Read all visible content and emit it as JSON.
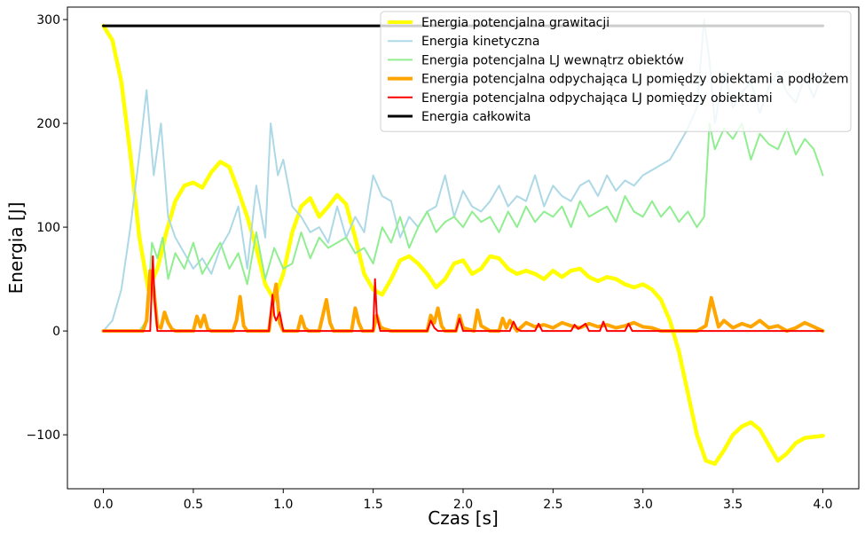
{
  "chart_data": {
    "type": "line",
    "xlabel": "Czas [s]",
    "ylabel": "Energia [J]",
    "xlim": [
      -0.2,
      4.2
    ],
    "ylim": [
      -152,
      312
    ],
    "xticks": [
      0.0,
      0.5,
      1.0,
      1.5,
      2.0,
      2.5,
      3.0,
      3.5,
      4.0
    ],
    "xtick_labels": [
      "0.0",
      "0.5",
      "1.0",
      "1.5",
      "2.0",
      "2.5",
      "3.0",
      "3.5",
      "4.0"
    ],
    "yticks": [
      -100,
      0,
      100,
      200,
      300
    ],
    "ytick_labels": [
      "−100",
      "0",
      "100",
      "200",
      "300"
    ],
    "grid": false,
    "legend_position": "top-right",
    "series": [
      {
        "name": "Energia potencjalna grawitacji",
        "color": "#ffff00",
        "width": 4.5,
        "x": [
          0.0,
          0.05,
          0.1,
          0.15,
          0.2,
          0.25,
          0.3,
          0.35,
          0.4,
          0.45,
          0.5,
          0.55,
          0.6,
          0.65,
          0.7,
          0.75,
          0.8,
          0.85,
          0.9,
          0.95,
          1.0,
          1.05,
          1.1,
          1.15,
          1.2,
          1.25,
          1.3,
          1.35,
          1.4,
          1.45,
          1.5,
          1.55,
          1.6,
          1.65,
          1.7,
          1.75,
          1.8,
          1.85,
          1.9,
          1.95,
          2.0,
          2.05,
          2.1,
          2.15,
          2.2,
          2.25,
          2.3,
          2.35,
          2.4,
          2.45,
          2.5,
          2.55,
          2.6,
          2.65,
          2.7,
          2.75,
          2.8,
          2.85,
          2.9,
          2.95,
          3.0,
          3.05,
          3.1,
          3.15,
          3.2,
          3.25,
          3.3,
          3.35,
          3.4,
          3.45,
          3.5,
          3.55,
          3.6,
          3.65,
          3.7,
          3.75,
          3.8,
          3.85,
          3.9,
          3.95,
          4.0
        ],
        "values": [
          294,
          280,
          240,
          170,
          90,
          40,
          60,
          95,
          125,
          140,
          143,
          138,
          153,
          163,
          158,
          135,
          110,
          80,
          45,
          30,
          55,
          95,
          120,
          128,
          110,
          120,
          131,
          122,
          90,
          55,
          40,
          35,
          50,
          68,
          72,
          65,
          55,
          42,
          50,
          65,
          68,
          55,
          60,
          72,
          70,
          60,
          55,
          58,
          55,
          50,
          58,
          52,
          58,
          60,
          52,
          48,
          52,
          50,
          45,
          42,
          45,
          40,
          30,
          10,
          -20,
          -60,
          -100,
          -125,
          -128,
          -115,
          -100,
          -92,
          -88,
          -95,
          -110,
          -125,
          -118,
          -108,
          -103,
          -102,
          -101
        ]
      },
      {
        "name": "Energia kinetyczna",
        "color": "#add8e6",
        "width": 2,
        "x": [
          0.0,
          0.05,
          0.1,
          0.15,
          0.2,
          0.24,
          0.28,
          0.32,
          0.36,
          0.4,
          0.45,
          0.5,
          0.55,
          0.6,
          0.65,
          0.7,
          0.75,
          0.8,
          0.85,
          0.9,
          0.93,
          0.97,
          1.0,
          1.05,
          1.1,
          1.15,
          1.2,
          1.25,
          1.3,
          1.35,
          1.4,
          1.45,
          1.5,
          1.55,
          1.6,
          1.65,
          1.7,
          1.75,
          1.8,
          1.85,
          1.9,
          1.95,
          2.0,
          2.05,
          2.1,
          2.15,
          2.2,
          2.25,
          2.3,
          2.35,
          2.4,
          2.45,
          2.5,
          2.55,
          2.6,
          2.65,
          2.7,
          2.75,
          2.8,
          2.85,
          2.9,
          2.95,
          3.0,
          3.05,
          3.1,
          3.15,
          3.2,
          3.25,
          3.3,
          3.34,
          3.37,
          3.4,
          3.45,
          3.5,
          3.55,
          3.6,
          3.65,
          3.7,
          3.75,
          3.8,
          3.85,
          3.9,
          3.95,
          4.0
        ],
        "values": [
          0,
          10,
          40,
          100,
          170,
          232,
          150,
          200,
          110,
          90,
          75,
          60,
          70,
          55,
          80,
          95,
          120,
          60,
          140,
          90,
          200,
          150,
          165,
          120,
          110,
          95,
          100,
          85,
          120,
          90,
          110,
          95,
          150,
          130,
          125,
          90,
          110,
          100,
          115,
          120,
          150,
          110,
          135,
          120,
          115,
          125,
          140,
          120,
          130,
          125,
          150,
          120,
          140,
          130,
          125,
          140,
          145,
          130,
          150,
          135,
          145,
          140,
          150,
          155,
          160,
          165,
          180,
          195,
          215,
          300,
          260,
          200,
          250,
          215,
          230,
          240,
          210,
          235,
          250,
          230,
          220,
          245,
          225,
          250
        ]
      },
      {
        "name": "Energia potencjalna LJ wewnątrz obiektów",
        "color": "#90ee90",
        "width": 2,
        "x": [
          0.0,
          0.1,
          0.2,
          0.24,
          0.27,
          0.3,
          0.33,
          0.36,
          0.4,
          0.45,
          0.5,
          0.55,
          0.6,
          0.65,
          0.7,
          0.75,
          0.8,
          0.85,
          0.9,
          0.95,
          1.0,
          1.05,
          1.1,
          1.15,
          1.2,
          1.25,
          1.3,
          1.35,
          1.4,
          1.45,
          1.5,
          1.55,
          1.6,
          1.65,
          1.7,
          1.75,
          1.8,
          1.85,
          1.9,
          1.95,
          2.0,
          2.05,
          2.1,
          2.15,
          2.2,
          2.25,
          2.3,
          2.35,
          2.4,
          2.45,
          2.5,
          2.55,
          2.6,
          2.65,
          2.7,
          2.75,
          2.8,
          2.85,
          2.9,
          2.95,
          3.0,
          3.05,
          3.1,
          3.15,
          3.2,
          3.25,
          3.3,
          3.34,
          3.37,
          3.4,
          3.45,
          3.5,
          3.55,
          3.6,
          3.65,
          3.7,
          3.75,
          3.8,
          3.85,
          3.9,
          3.95,
          4.0
        ],
        "values": [
          0,
          0,
          0,
          10,
          85,
          70,
          90,
          50,
          75,
          60,
          85,
          55,
          70,
          85,
          60,
          75,
          45,
          95,
          50,
          80,
          60,
          65,
          95,
          70,
          90,
          80,
          85,
          90,
          75,
          80,
          65,
          100,
          85,
          110,
          80,
          100,
          115,
          95,
          105,
          110,
          100,
          115,
          105,
          110,
          95,
          115,
          100,
          120,
          105,
          115,
          110,
          120,
          100,
          125,
          110,
          115,
          120,
          105,
          130,
          115,
          110,
          125,
          110,
          120,
          105,
          115,
          100,
          110,
          200,
          175,
          195,
          185,
          200,
          165,
          190,
          180,
          175,
          195,
          170,
          185,
          175,
          150
        ]
      },
      {
        "name": "Energia potencjalna odpychająca LJ pomiędzy obiektami a podłożem",
        "color": "#ffa500",
        "width": 4,
        "x": [
          0.0,
          0.22,
          0.24,
          0.26,
          0.28,
          0.3,
          0.32,
          0.34,
          0.36,
          0.38,
          0.4,
          0.5,
          0.52,
          0.54,
          0.56,
          0.58,
          0.6,
          0.72,
          0.74,
          0.76,
          0.78,
          0.8,
          0.92,
          0.94,
          0.96,
          0.98,
          1.0,
          1.08,
          1.1,
          1.12,
          1.14,
          1.2,
          1.22,
          1.24,
          1.26,
          1.28,
          1.38,
          1.4,
          1.42,
          1.44,
          1.5,
          1.52,
          1.54,
          1.56,
          1.6,
          1.8,
          1.82,
          1.84,
          1.86,
          1.88,
          1.9,
          1.96,
          1.98,
          2.0,
          2.06,
          2.08,
          2.1,
          2.15,
          2.2,
          2.22,
          2.24,
          2.26,
          2.28,
          2.3,
          2.35,
          2.4,
          2.45,
          2.5,
          2.55,
          2.6,
          2.65,
          2.7,
          2.75,
          2.8,
          2.85,
          2.9,
          2.95,
          3.0,
          3.05,
          3.1,
          3.15,
          3.2,
          3.25,
          3.3,
          3.35,
          3.38,
          3.4,
          3.42,
          3.45,
          3.5,
          3.55,
          3.6,
          3.65,
          3.7,
          3.75,
          3.8,
          3.85,
          3.9,
          3.95,
          4.0
        ],
        "values": [
          0,
          0,
          10,
          58,
          40,
          5,
          3,
          18,
          8,
          2,
          0,
          0,
          14,
          4,
          15,
          2,
          0,
          0,
          10,
          33,
          5,
          0,
          0,
          25,
          45,
          8,
          0,
          0,
          14,
          3,
          0,
          0,
          15,
          30,
          8,
          0,
          0,
          22,
          8,
          0,
          0,
          15,
          4,
          2,
          0,
          0,
          15,
          8,
          22,
          5,
          0,
          0,
          15,
          3,
          0,
          20,
          5,
          0,
          0,
          12,
          3,
          10,
          5,
          0,
          8,
          4,
          6,
          3,
          8,
          5,
          3,
          7,
          4,
          6,
          3,
          5,
          8,
          4,
          3,
          0,
          0,
          0,
          0,
          0,
          5,
          32,
          18,
          4,
          10,
          3,
          7,
          4,
          10,
          3,
          5,
          0,
          3,
          8,
          4,
          0
        ]
      },
      {
        "name": "Energia potencjalna odpychająca LJ pomiędzy obiektami",
        "color": "#ff0000",
        "width": 2,
        "x": [
          0.0,
          0.26,
          0.275,
          0.285,
          0.3,
          0.92,
          0.94,
          0.95,
          0.96,
          0.98,
          1.0,
          1.5,
          1.51,
          1.52,
          1.54,
          1.6,
          1.8,
          1.82,
          1.84,
          1.86,
          1.9,
          1.96,
          1.98,
          2.0,
          2.26,
          2.28,
          2.3,
          2.32,
          2.4,
          2.42,
          2.44,
          2.6,
          2.62,
          2.64,
          2.68,
          2.7,
          2.76,
          2.78,
          2.8,
          2.9,
          2.92,
          2.94,
          3.0,
          4.0
        ],
        "values": [
          0,
          0,
          72,
          30,
          0,
          0,
          35,
          15,
          10,
          18,
          0,
          0,
          50,
          15,
          0,
          0,
          0,
          10,
          3,
          0,
          0,
          0,
          12,
          0,
          0,
          9,
          2,
          0,
          0,
          7,
          0,
          0,
          6,
          2,
          7,
          0,
          0,
          9,
          0,
          0,
          7,
          0,
          0,
          0
        ]
      },
      {
        "name": "Energia całkowita",
        "color": "#000000",
        "width": 3,
        "x": [
          0.0,
          4.0
        ],
        "values": [
          294,
          294
        ]
      }
    ]
  }
}
